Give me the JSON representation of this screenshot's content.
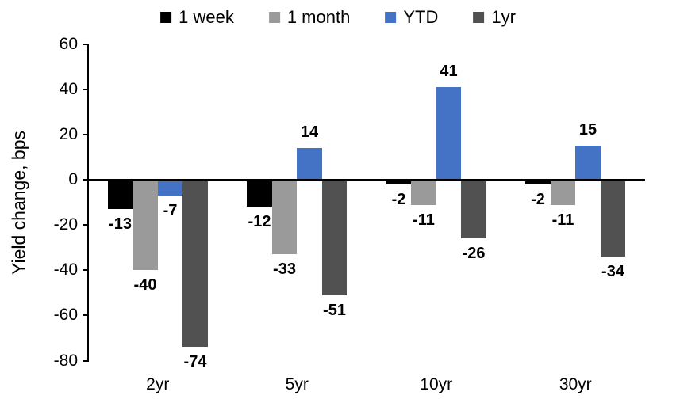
{
  "chart_data": {
    "type": "bar",
    "title": "",
    "xlabel": "",
    "ylabel": "Yield change, bps",
    "categories": [
      "2yr",
      "5yr",
      "10yr",
      "30yr"
    ],
    "series": [
      {
        "name": "1 week",
        "color": "#000000",
        "values": [
          -13,
          -12,
          -2,
          -2
        ]
      },
      {
        "name": "1 month",
        "color": "#9A9A9A",
        "values": [
          -40,
          -33,
          -11,
          -11
        ]
      },
      {
        "name": "YTD",
        "color": "#4472C4",
        "values": [
          -7,
          14,
          41,
          15
        ]
      },
      {
        "name": "1yr",
        "color": "#515151",
        "values": [
          -74,
          -51,
          -26,
          -34
        ]
      }
    ],
    "ylim": [
      -80,
      60
    ],
    "yticks": [
      60,
      40,
      20,
      0,
      -20,
      -40,
      -60,
      -80
    ],
    "grid": false,
    "legend_position": "top",
    "data_labels": true,
    "axis_color": "#000000",
    "background": "#ffffff"
  }
}
